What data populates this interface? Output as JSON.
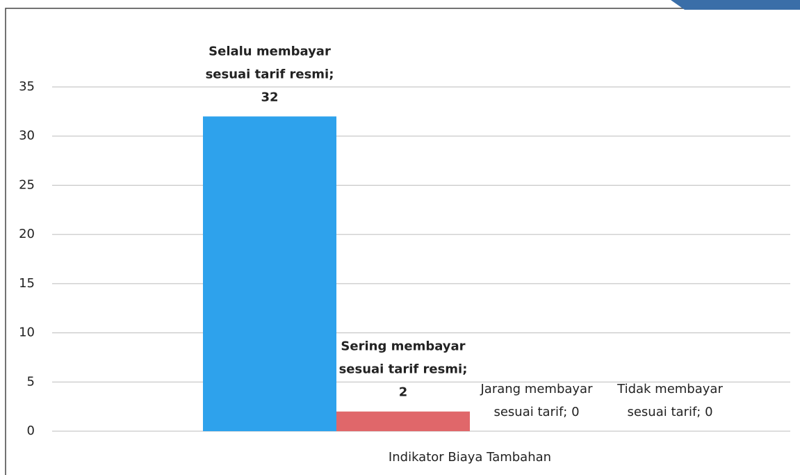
{
  "chart_data": {
    "type": "bar",
    "categories": [
      "Indikator Biaya Tambahan"
    ],
    "series": [
      {
        "color": "#2ea2ec",
        "values": [
          32
        ],
        "value_labels": [
          "Selalu membayar sesuai tarif resmi; 32"
        ]
      },
      {
        "color": "#e0676a",
        "values": [
          2
        ],
        "value_labels": [
          "Sering membayar sesuai tarif resmi; 2"
        ]
      },
      {
        "color": "#9bbb59",
        "values": [
          0
        ],
        "value_labels": [
          "Jarang membayar sesuai tarif; 0"
        ]
      },
      {
        "color": "#8064a2",
        "values": [
          0
        ],
        "value_labels": [
          "Tidak membayar sesuai tarif; 0"
        ]
      }
    ],
    "ylim": [
      0,
      35
    ],
    "yticks": [
      0,
      5,
      10,
      15,
      20,
      25,
      30,
      35
    ],
    "grid": true
  }
}
